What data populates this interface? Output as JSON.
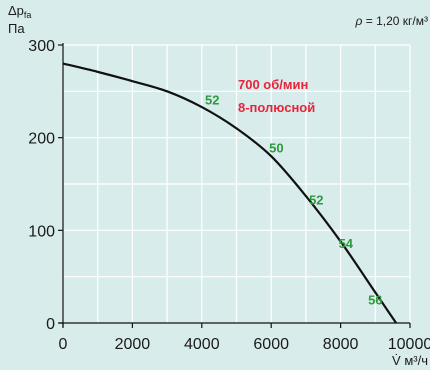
{
  "chart_data": {
    "type": "line",
    "y_label_symbol": "Δp",
    "y_label_subscript": "fa",
    "y_unit": "Па",
    "x_label_symbol": "V̇",
    "x_unit": "м³/ч",
    "density_symbol": "ρ",
    "density_value": "= 1,20 кг/м³",
    "xlim": [
      0,
      10000
    ],
    "ylim": [
      0,
      300
    ],
    "x_ticks": [
      0,
      2000,
      4000,
      6000,
      8000,
      10000
    ],
    "x_tick_labels": [
      "0",
      "2000",
      "4000",
      "6000",
      "8000",
      "10000"
    ],
    "y_ticks": [
      0,
      100,
      200,
      300
    ],
    "y_tick_labels": [
      "0",
      "100",
      "200",
      "300"
    ],
    "grid": true,
    "speed_label": "700 об/мин",
    "pole_label": "8-полюсной",
    "series": [
      {
        "x": [
          0,
          1000,
          2000,
          3000,
          4000,
          5000,
          6000,
          7000,
          8000,
          9000,
          9600
        ],
        "y": [
          280,
          271,
          261,
          250,
          233,
          210,
          180,
          137,
          88,
          33,
          0
        ]
      }
    ],
    "noise_labels": [
      {
        "text": "52",
        "x": 4300,
        "y": 236
      },
      {
        "text": "50",
        "x": 6150,
        "y": 184
      },
      {
        "text": "52",
        "x": 7300,
        "y": 128
      },
      {
        "text": "54",
        "x": 8150,
        "y": 81
      },
      {
        "text": "56",
        "x": 9000,
        "y": 20
      }
    ],
    "colors": {
      "curve": "#111111",
      "grid": "#ffffff",
      "speed_text": "#e8243a",
      "noise_text": "#2f9b3c",
      "background": "#d9ecec"
    }
  }
}
